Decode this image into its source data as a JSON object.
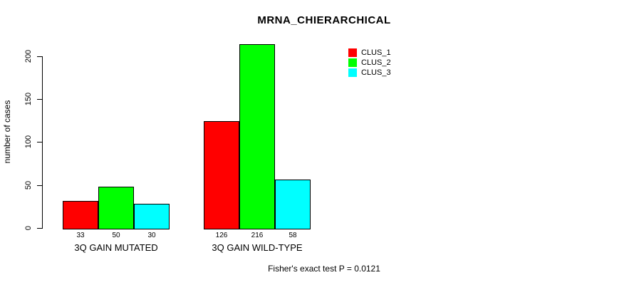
{
  "chart_data": {
    "type": "bar",
    "title": "MRNA_CHIERARCHICAL",
    "xlabel": "",
    "ylabel": "number of cases",
    "categories": [
      "3Q GAIN MUTATED",
      "3Q GAIN WILD-TYPE"
    ],
    "series": [
      {
        "name": "CLUS_1",
        "color": "#ff0000",
        "values": [
          33,
          126
        ]
      },
      {
        "name": "CLUS_2",
        "color": "#00ff00",
        "values": [
          50,
          216
        ]
      },
      {
        "name": "CLUS_3",
        "color": "#00ffff",
        "values": [
          30,
          58
        ]
      }
    ],
    "bar_value_labels": [
      [
        "33",
        "50",
        "30"
      ],
      [
        "126",
        "216",
        "58"
      ]
    ],
    "yticks": [
      0,
      50,
      100,
      150,
      200
    ],
    "ylim": [
      0,
      200
    ],
    "grid": false,
    "legend_position": "top-right",
    "bar_border_color": "#000000",
    "footnote": "Fisher's exact test P = 0.0121"
  }
}
